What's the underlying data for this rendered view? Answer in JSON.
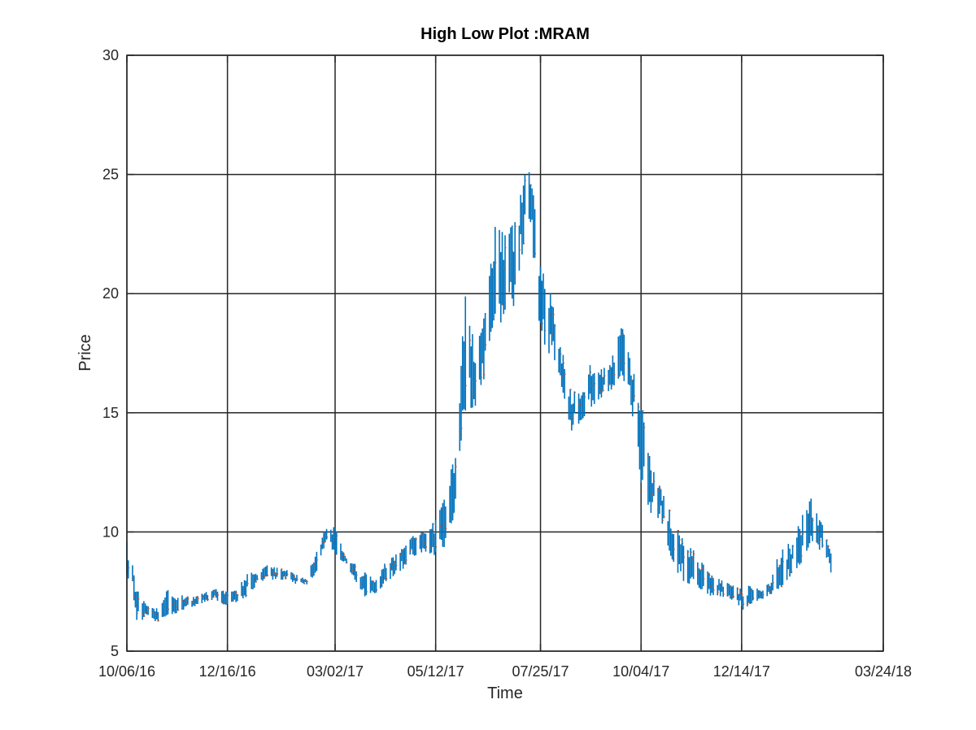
{
  "chart_data": {
    "type": "line",
    "title": "High Low Plot :MRAM",
    "xlabel": "Time",
    "ylabel": "Price",
    "ylim": [
      5,
      30
    ],
    "yticks": [
      "5",
      "10",
      "15",
      "20",
      "25",
      "30"
    ],
    "xlim": [
      "10/06/16",
      "03/24/18"
    ],
    "xticks": [
      "10/06/16",
      "12/16/16",
      "03/02/17",
      "05/12/17",
      "07/25/17",
      "10/04/17",
      "12/14/17",
      "03/24/18"
    ],
    "grid": true,
    "colors": {
      "bars": "#0072BD",
      "close_marks": "#D95319",
      "grid": "#262626"
    },
    "series": [
      {
        "kind": "high-low",
        "points": [
          [
            "10/06/16",
            9.8,
            8.2
          ],
          [
            "10/10/16",
            8.6,
            7.6
          ],
          [
            "10/13/16",
            7.6,
            6.2
          ],
          [
            "10/20/16",
            6.9,
            6.4
          ],
          [
            "10/27/16",
            6.8,
            6.2
          ],
          [
            "11/03/16",
            7.6,
            6.5
          ],
          [
            "11/10/16",
            7.4,
            6.6
          ],
          [
            "11/17/16",
            7.3,
            6.8
          ],
          [
            "11/24/16",
            7.3,
            6.9
          ],
          [
            "12/01/16",
            7.5,
            7.0
          ],
          [
            "12/08/16",
            7.6,
            7.1
          ],
          [
            "12/16/16",
            7.5,
            6.8
          ],
          [
            "12/23/16",
            7.6,
            7.1
          ],
          [
            "12/30/16",
            8.3,
            7.3
          ],
          [
            "01/06/17",
            8.3,
            7.8
          ],
          [
            "01/13/17",
            8.6,
            8.0
          ],
          [
            "01/20/17",
            8.5,
            8.0
          ],
          [
            "01/27/17",
            8.4,
            8.0
          ],
          [
            "02/03/17",
            8.2,
            7.8
          ],
          [
            "02/10/17",
            8.0,
            7.8
          ],
          [
            "02/17/17",
            9.4,
            8.3
          ],
          [
            "02/24/17",
            10.2,
            9.6
          ],
          [
            "03/02/17",
            10.2,
            9.0
          ],
          [
            "03/09/17",
            9.0,
            8.7
          ],
          [
            "03/16/17",
            8.8,
            8.0
          ],
          [
            "03/23/17",
            8.3,
            7.3
          ],
          [
            "03/30/17",
            8.0,
            7.4
          ],
          [
            "04/06/17",
            8.7,
            7.8
          ],
          [
            "04/13/17",
            9.0,
            8.2
          ],
          [
            "04/20/17",
            9.4,
            8.5
          ],
          [
            "04/27/17",
            9.9,
            9.0
          ],
          [
            "05/04/17",
            10.0,
            9.2
          ],
          [
            "05/12/17",
            10.5,
            9.0
          ],
          [
            "05/19/17",
            11.5,
            9.2
          ],
          [
            "05/26/17",
            14.0,
            11.0
          ],
          [
            "06/02/17",
            20.3,
            15.1
          ],
          [
            "06/09/17",
            17.5,
            15.0
          ],
          [
            "06/16/17",
            19.2,
            16.5
          ],
          [
            "06/23/17",
            22.8,
            18.5
          ],
          [
            "06/30/17",
            22.5,
            18.7
          ],
          [
            "07/07/17",
            23.0,
            19.5
          ],
          [
            "07/14/17",
            25.0,
            22.5
          ],
          [
            "07/18/17",
            25.3,
            23.0
          ],
          [
            "07/25/17",
            21.2,
            17.5
          ],
          [
            "08/01/17",
            20.0,
            17.5
          ],
          [
            "08/08/17",
            18.0,
            16.4
          ],
          [
            "08/15/17",
            16.0,
            14.2
          ],
          [
            "08/22/17",
            15.8,
            14.6
          ],
          [
            "08/29/17",
            17.0,
            15.2
          ],
          [
            "09/05/17",
            16.8,
            15.6
          ],
          [
            "09/12/17",
            17.0,
            15.8
          ],
          [
            "09/19/17",
            19.0,
            16.5
          ],
          [
            "09/26/17",
            17.3,
            15.8
          ],
          [
            "10/04/17",
            15.5,
            12.0
          ],
          [
            "10/11/17",
            12.8,
            10.8
          ],
          [
            "10/18/17",
            11.8,
            10.5
          ],
          [
            "10/25/17",
            10.8,
            9.0
          ],
          [
            "11/01/17",
            9.8,
            8.0
          ],
          [
            "11/08/17",
            9.4,
            7.8
          ],
          [
            "11/15/17",
            8.8,
            7.6
          ],
          [
            "11/22/17",
            8.2,
            7.3
          ],
          [
            "11/29/17",
            8.0,
            7.3
          ],
          [
            "12/06/17",
            7.8,
            7.2
          ],
          [
            "12/14/17",
            7.6,
            6.7
          ],
          [
            "12/21/17",
            7.8,
            7.0
          ],
          [
            "12/28/17",
            7.5,
            7.1
          ],
          [
            "01/04/18",
            8.0,
            7.4
          ],
          [
            "01/11/18",
            9.5,
            7.7
          ],
          [
            "01/18/18",
            9.5,
            8.2
          ],
          [
            "01/25/18",
            10.6,
            8.7
          ],
          [
            "02/01/18",
            11.4,
            9.6
          ],
          [
            "02/08/18",
            10.5,
            9.2
          ],
          [
            "02/15/18",
            9.1,
            8.3
          ]
        ]
      }
    ]
  }
}
